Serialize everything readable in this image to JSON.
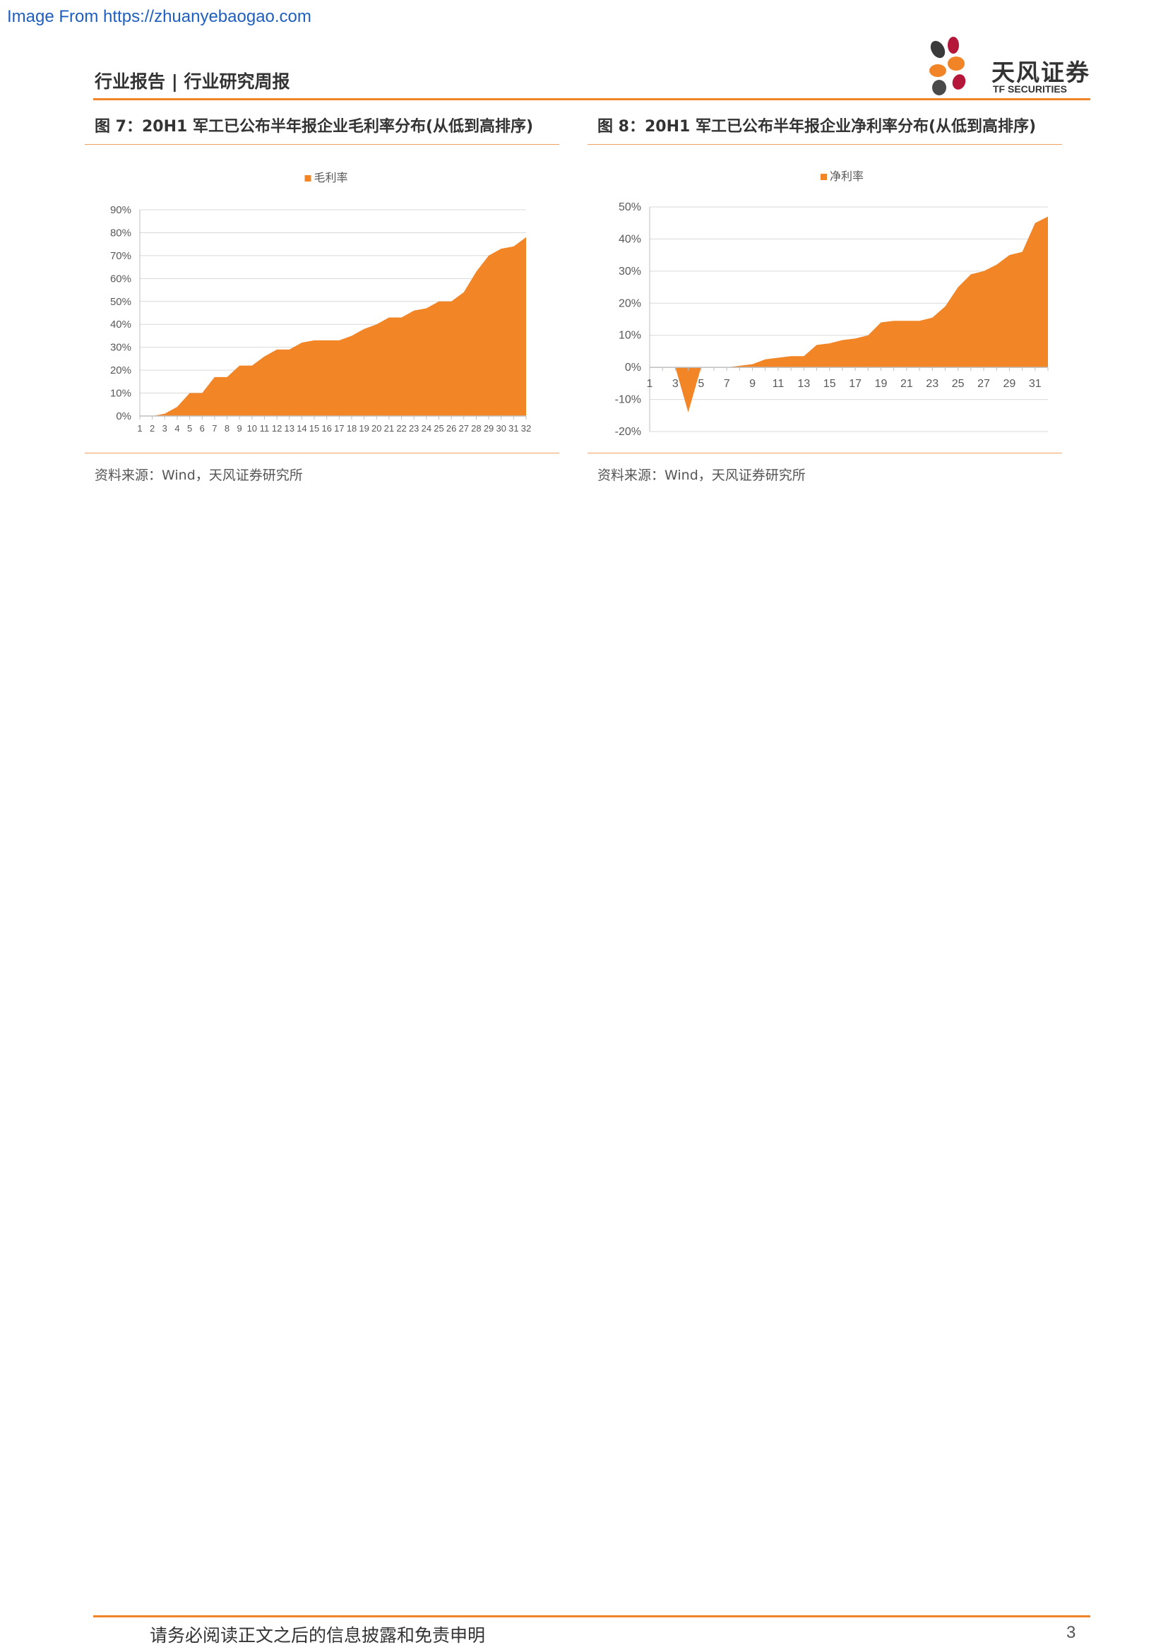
{
  "watermark": "Image From https://zhuanyebaogao.com",
  "header": {
    "left_title": "行业报告 | 行业研究周报",
    "logo_cn": "天风证券",
    "logo_en": "TF SECURITIES",
    "accent_color": "#f08426"
  },
  "figures": [
    {
      "title": "图 7：20H1 军工已公布半年报企业毛利率分布(从低到高排序)",
      "source": "资料来源：Wind，天风证券研究所"
    },
    {
      "title": "图 8：20H1 军工已公布半年报企业净利率分布(从低到高排序)",
      "source": "资料来源：Wind，天风证券研究所"
    }
  ],
  "chart_data": [
    {
      "type": "area",
      "legend": "毛利率",
      "legend_position": "top-center",
      "color": "#f28526",
      "x": [
        1,
        2,
        3,
        4,
        5,
        6,
        7,
        8,
        9,
        10,
        11,
        12,
        13,
        14,
        15,
        16,
        17,
        18,
        19,
        20,
        21,
        22,
        23,
        24,
        25,
        26,
        27,
        28,
        29,
        30,
        31,
        32
      ],
      "x_tick_labels": [
        "1",
        "2",
        "3",
        "4",
        "5",
        "6",
        "7",
        "8",
        "9",
        "10",
        "11",
        "12",
        "13",
        "14",
        "15",
        "16",
        "17",
        "18",
        "19",
        "20",
        "21",
        "22",
        "23",
        "24",
        "25",
        "26",
        "27",
        "28",
        "29",
        "30",
        "31",
        "32"
      ],
      "values": [
        0,
        0,
        1,
        4,
        10,
        10,
        17,
        17,
        22,
        22,
        26,
        29,
        29,
        32,
        33,
        33,
        33,
        35,
        38,
        40,
        43,
        43,
        46,
        47,
        50,
        50,
        54,
        63,
        70,
        73,
        74,
        78
      ],
      "ylim": [
        0,
        90
      ],
      "y_ticks": [
        "0%",
        "10%",
        "20%",
        "30%",
        "40%",
        "50%",
        "60%",
        "70%",
        "80%",
        "90%"
      ],
      "grid": true
    },
    {
      "type": "area",
      "legend": "净利率",
      "legend_position": "top-center",
      "color": "#f28526",
      "x": [
        1,
        2,
        3,
        4,
        5,
        6,
        7,
        8,
        9,
        10,
        11,
        12,
        13,
        14,
        15,
        16,
        17,
        18,
        19,
        20,
        21,
        22,
        23,
        24,
        25,
        26,
        27,
        28,
        29,
        30,
        31,
        32
      ],
      "x_tick_labels": [
        "1",
        "3",
        "5",
        "7",
        "9",
        "11",
        "13",
        "15",
        "17",
        "19",
        "21",
        "23",
        "25",
        "27",
        "29",
        "31"
      ],
      "values": [
        0,
        0,
        0,
        -14,
        0,
        0,
        0,
        0.5,
        1,
        2.5,
        3,
        3.5,
        3.5,
        7,
        7.5,
        8.5,
        9,
        10,
        14,
        14.5,
        14.5,
        14.5,
        15.5,
        19,
        25,
        29,
        30,
        32,
        35,
        36,
        45,
        47
      ],
      "ylim": [
        -20,
        50
      ],
      "y_ticks": [
        "-20%",
        "-10%",
        "0%",
        "10%",
        "20%",
        "30%",
        "40%",
        "50%"
      ],
      "grid": true
    }
  ],
  "footer": {
    "disclaimer": "请务必阅读正文之后的信息披露和免责申明",
    "page_number": "3"
  }
}
